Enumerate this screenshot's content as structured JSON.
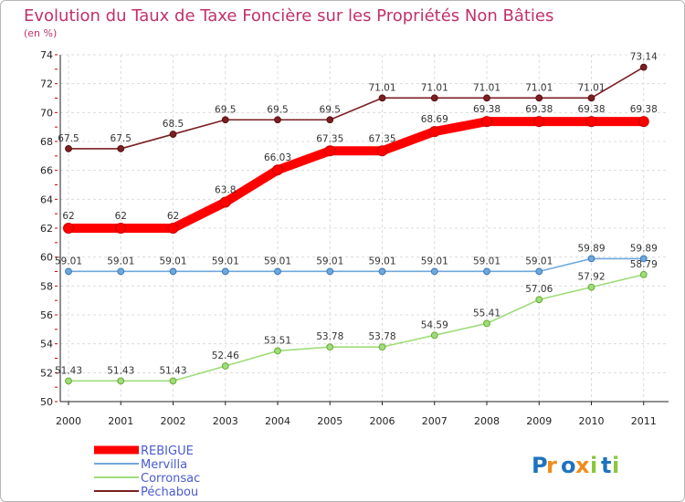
{
  "chart_data": {
    "type": "line",
    "title": "Evolution du Taux de Taxe Foncière sur les Propriétés Non Bâties",
    "ylabel": "(en %)",
    "xlabel": "",
    "categories": [
      "2000",
      "2001",
      "2002",
      "2003",
      "2004",
      "2005",
      "2006",
      "2007",
      "2008",
      "2009",
      "2010",
      "2011"
    ],
    "ylim": [
      50,
      74
    ],
    "yticks": [
      50,
      52,
      54,
      56,
      58,
      60,
      62,
      64,
      66,
      68,
      70,
      72,
      74
    ],
    "grid": true,
    "legend_position": "bottom-left",
    "series": [
      {
        "name": "Péchabou",
        "color": "#7a1f22",
        "values": [
          67.5,
          67.5,
          68.5,
          69.5,
          69.5,
          69.5,
          71.01,
          71.01,
          71.01,
          71.01,
          71.01,
          73.14
        ],
        "labels": [
          "67.5",
          "67.5",
          "68.5",
          "69.5",
          "69.5",
          "69.5",
          "71.01",
          "71.01",
          "71.01",
          "71.01",
          "71.01",
          "73.14"
        ]
      },
      {
        "name": "Corronsac",
        "color": "#9fdc7a",
        "values": [
          51.43,
          51.43,
          51.43,
          52.46,
          53.51,
          53.78,
          53.78,
          54.59,
          55.41,
          57.06,
          57.92,
          58.79
        ],
        "labels": [
          "51.43",
          "51.43",
          "51.43",
          "52.46",
          "53.51",
          "53.78",
          "53.78",
          "54.59",
          "55.41",
          "57.06",
          "57.92",
          "58.79"
        ]
      },
      {
        "name": "Mervilla",
        "color": "#6fa8dc",
        "values": [
          59.01,
          59.01,
          59.01,
          59.01,
          59.01,
          59.01,
          59.01,
          59.01,
          59.01,
          59.01,
          59.89,
          59.89
        ],
        "labels": [
          "59.01",
          "59.01",
          "59.01",
          "59.01",
          "59.01",
          "59.01",
          "59.01",
          "59.01",
          "59.01",
          "59.01",
          "59.89",
          "59.89"
        ]
      },
      {
        "name": "REBIGUE",
        "color": "#ff0000",
        "values": [
          62,
          62,
          62,
          63.8,
          66.03,
          67.35,
          67.35,
          68.69,
          69.38,
          69.38,
          69.38,
          69.38
        ],
        "labels": [
          "62",
          "62",
          "62",
          "63.8",
          "66.03",
          "67.35",
          "67.35",
          "68.69",
          "69.38",
          "69.38",
          "69.38",
          "69.38"
        ]
      }
    ],
    "legend": [
      "REBIGUE",
      "Mervilla",
      "Corronsac",
      "Péchabou"
    ]
  },
  "branding": {
    "logo_text": "Proxiti"
  }
}
